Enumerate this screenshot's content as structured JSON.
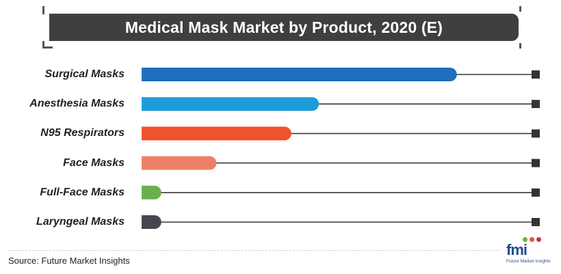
{
  "chart_data": {
    "type": "bar",
    "orientation": "horizontal",
    "title": "Medical Mask Market by Product, 2020 (E)",
    "categories": [
      "Surgical Masks",
      "Anesthesia Masks",
      "N95 Respirators",
      "Face Masks",
      "Full-Face Masks",
      "Laryngeal Masks"
    ],
    "values": [
      80,
      45,
      38,
      19,
      5,
      5
    ],
    "bar_colors": [
      "#1f6ebf",
      "#1b9dd9",
      "#f0522b",
      "#ef8068",
      "#6ab04c",
      "#45474d"
    ],
    "xlim": [
      0,
      100
    ],
    "grid": false,
    "legend": "none"
  },
  "source": "Source: Future Market Insights",
  "logo": {
    "wordmark": "fmi",
    "tagline": "Future Market Insights"
  }
}
